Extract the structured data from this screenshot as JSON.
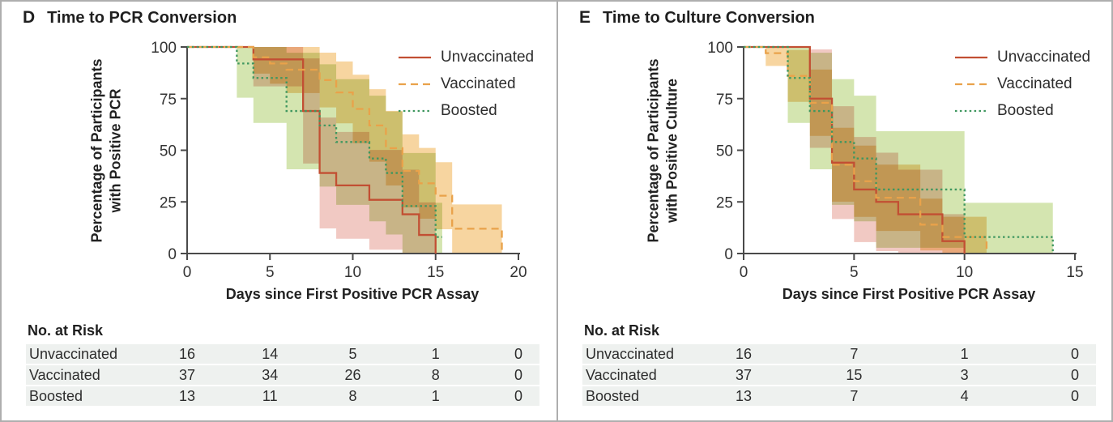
{
  "chart_data": [
    {
      "type": "line",
      "subtype": "kaplan-meier-step",
      "panel_letter": "D",
      "title": "Time to PCR Conversion",
      "xlabel": "Days since First Positive PCR Assay",
      "ylabel_lines": [
        "Percentage of Participants",
        "with Positive PCR"
      ],
      "xlim": [
        0,
        20
      ],
      "ylim": [
        0,
        100
      ],
      "xticks": [
        0,
        5,
        10,
        15,
        20
      ],
      "yticks": [
        0,
        25,
        50,
        75,
        100
      ],
      "grid": false,
      "legend_position": "top-right",
      "colors": {
        "axis": "#4a4a4a",
        "tick_text": "#333333"
      },
      "series": [
        {
          "name": "Unvaccinated",
          "n": 16,
          "color": "#c24f33",
          "band_color": "#f1c9c3",
          "dash": "solid",
          "points": [
            [
              0,
              100
            ],
            [
              4,
              94
            ],
            [
              7,
              69
            ],
            [
              8,
              39
            ],
            [
              9,
              33
            ],
            [
              11,
              26
            ],
            [
              13,
              19
            ],
            [
              14,
              9
            ],
            [
              15,
              0
            ]
          ]
        },
        {
          "name": "Vaccinated",
          "n": 37,
          "color": "#e9a24a",
          "band_color": "#f7d5a0",
          "dash": "dashed",
          "points": [
            [
              0,
              100
            ],
            [
              4,
              95
            ],
            [
              5,
              92
            ],
            [
              6,
              89
            ],
            [
              8,
              84
            ],
            [
              9,
              78
            ],
            [
              10,
              70
            ],
            [
              11,
              62
            ],
            [
              12,
              51
            ],
            [
              13,
              40
            ],
            [
              14,
              34
            ],
            [
              15,
              28
            ],
            [
              16,
              12
            ],
            [
              19,
              0
            ]
          ]
        },
        {
          "name": "Boosted",
          "n": 13,
          "color": "#3f975f",
          "band_color": "#d4e5b0",
          "dash": "dotted",
          "points": [
            [
              0,
              100
            ],
            [
              3,
              92
            ],
            [
              4,
              85
            ],
            [
              6,
              69
            ],
            [
              8,
              62
            ],
            [
              9,
              54
            ],
            [
              11,
              46
            ],
            [
              12,
              39
            ],
            [
              13,
              23
            ],
            [
              15,
              8
            ]
          ],
          "end_day": 15.4
        }
      ],
      "risk_table": {
        "label": "No. at Risk",
        "days": [
          0,
          5,
          10,
          15,
          20
        ],
        "rows": [
          {
            "label": "Unvaccinated",
            "values": [
              16,
              14,
              5,
              1,
              0
            ]
          },
          {
            "label": "Vaccinated",
            "values": [
              37,
              34,
              26,
              8,
              0
            ]
          },
          {
            "label": "Boosted",
            "values": [
              13,
              11,
              8,
              1,
              0
            ]
          }
        ]
      }
    },
    {
      "type": "line",
      "subtype": "kaplan-meier-step",
      "panel_letter": "E",
      "title": "Time to Culture Conversion",
      "xlabel": "Days since First Positive PCR Assay",
      "ylabel_lines": [
        "Percentage of Participants",
        "with Positive Culture"
      ],
      "xlim": [
        0,
        15
      ],
      "ylim": [
        0,
        100
      ],
      "xticks": [
        0,
        5,
        10,
        15
      ],
      "yticks": [
        0,
        25,
        50,
        75,
        100
      ],
      "grid": false,
      "legend_position": "top-right",
      "colors": {
        "axis": "#4a4a4a",
        "tick_text": "#333333"
      },
      "series": [
        {
          "name": "Unvaccinated",
          "n": 16,
          "color": "#c24f33",
          "band_color": "#f1c9c3",
          "dash": "solid",
          "points": [
            [
              0,
              100
            ],
            [
              3,
              75
            ],
            [
              4,
              44
            ],
            [
              5,
              31
            ],
            [
              6,
              25
            ],
            [
              7,
              19
            ],
            [
              9,
              6
            ],
            [
              10,
              0
            ]
          ]
        },
        {
          "name": "Vaccinated",
          "n": 37,
          "color": "#e9a24a",
          "band_color": "#f7d5a0",
          "dash": "dashed",
          "points": [
            [
              0,
              100
            ],
            [
              1,
              97
            ],
            [
              2,
              86
            ],
            [
              3,
              73
            ],
            [
              4,
              43
            ],
            [
              5,
              35
            ],
            [
              6,
              27
            ],
            [
              8,
              14
            ],
            [
              9,
              8
            ],
            [
              11,
              0
            ]
          ]
        },
        {
          "name": "Boosted",
          "n": 13,
          "color": "#3f975f",
          "band_color": "#d4e5b0",
          "dash": "dotted",
          "points": [
            [
              0,
              100
            ],
            [
              2,
              85
            ],
            [
              3,
              69
            ],
            [
              4,
              54
            ],
            [
              5,
              46
            ],
            [
              6,
              31
            ],
            [
              10,
              8
            ],
            [
              14,
              0
            ]
          ]
        }
      ],
      "risk_table": {
        "label": "No. at Risk",
        "days": [
          0,
          5,
          10,
          15
        ],
        "rows": [
          {
            "label": "Unvaccinated",
            "values": [
              16,
              7,
              1,
              0
            ]
          },
          {
            "label": "Vaccinated",
            "values": [
              37,
              15,
              3,
              0
            ]
          },
          {
            "label": "Boosted",
            "values": [
              13,
              7,
              4,
              0
            ]
          }
        ]
      }
    }
  ]
}
